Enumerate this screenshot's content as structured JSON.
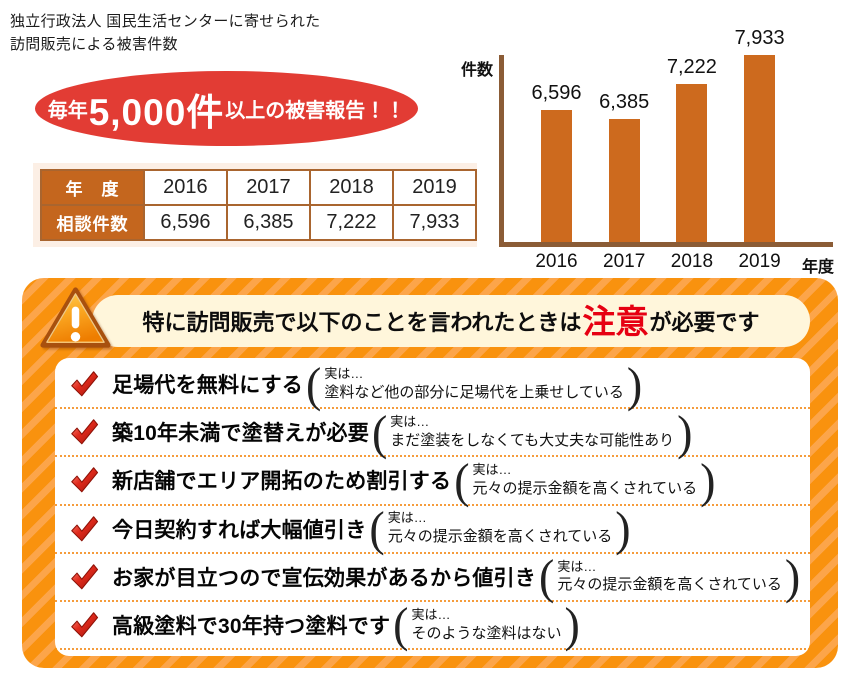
{
  "page": {
    "title_line1": "独立行政法人 国民生活センターに寄せられた",
    "title_line2": "訪問販売による被害件数"
  },
  "badge": {
    "prefix": "毎年",
    "highlight": "5,000件",
    "suffix": "以上の被害報告！！"
  },
  "table": {
    "header_row": {
      "label": "年　度",
      "values": [
        "2016",
        "2017",
        "2018",
        "2019"
      ]
    },
    "data_row": {
      "label": "相談件数",
      "values": [
        "6,596",
        "6,385",
        "7,222",
        "7,933"
      ]
    }
  },
  "chart_data": {
    "type": "bar",
    "title": "独立行政法人 国民生活センターに寄せられた訪問販売による被害件数",
    "ylabel": "件数",
    "xlabel": "年度",
    "categories": [
      "2016",
      "2017",
      "2018",
      "2019"
    ],
    "values": [
      6596,
      6385,
      7222,
      7933
    ],
    "value_labels": [
      "6,596",
      "6,385",
      "7,222",
      "7,933"
    ],
    "grid": false,
    "legend": false,
    "ylim_visual": [
      3400,
      8000
    ],
    "bar_color": "#cd6a1e"
  },
  "warning": {
    "heading": {
      "pre": "特に訪問販売で以下のことを言われたときは",
      "highlight": "注意",
      "post": "が必要です"
    },
    "paren_open": "(",
    "paren_close": ")",
    "items": [
      {
        "claim": "足場代を無料にする",
        "truth_intro": "実は…",
        "truth": "塗料など他の部分に足場代を上乗せしている"
      },
      {
        "claim": "築10年未満で塗替えが必要",
        "truth_intro": "実は…",
        "truth": "まだ塗装をしなくても大丈夫な可能性あり"
      },
      {
        "claim": "新店舗でエリア開拓のため割引する",
        "truth_intro": "実は…",
        "truth": "元々の提示金額を高くされている"
      },
      {
        "claim": "今日契約すれば大幅値引き",
        "truth_intro": "実は…",
        "truth": "元々の提示金額を高くされている"
      },
      {
        "claim": "お家が目立つので宣伝効果があるから値引き",
        "truth_intro": "実は…",
        "truth": "元々の提示金額を高くされている"
      },
      {
        "claim": "高級塗料で30年持つ塗料です",
        "truth_intro": "実は…",
        "truth": "そのような塗料はない"
      }
    ]
  },
  "icons": {
    "warning_triangle": {
      "name": "warning-triangle-icon",
      "glyph": "!"
    },
    "check": {
      "name": "red-check-icon",
      "glyph": "✔"
    }
  },
  "colors": {
    "stripe_base": "#f9920e",
    "stripe_light": "#fca54a",
    "bar": "#cd6a1e",
    "axis": "#8b5c36",
    "table_header": "#c4661e",
    "table_border": "#a9652f",
    "table_backdrop": "#fcefe5",
    "badge_red": "#e23c34",
    "alert_red": "#e60012",
    "pill_cream": "#fff6db",
    "dotted": "#f59c3c"
  }
}
